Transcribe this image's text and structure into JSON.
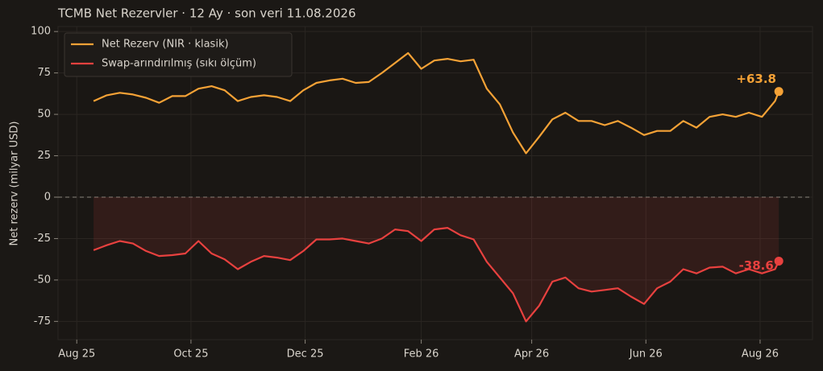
{
  "chart_data": {
    "type": "line",
    "title": "TCMB Net Rezervler · 12 Ay · son veri 11.08.2026",
    "y_label": "Net rezerv (milyar USD)",
    "x": [
      "2025-08-10",
      "2025-08-17",
      "2025-08-24",
      "2025-08-31",
      "2025-09-07",
      "2025-09-14",
      "2025-09-21",
      "2025-09-28",
      "2025-10-05",
      "2025-10-12",
      "2025-10-19",
      "2025-10-26",
      "2025-11-02",
      "2025-11-09",
      "2025-11-16",
      "2025-11-23",
      "2025-11-30",
      "2025-12-07",
      "2025-12-14",
      "2025-12-21",
      "2025-12-28",
      "2026-01-04",
      "2026-01-11",
      "2026-01-18",
      "2026-01-25",
      "2026-02-01",
      "2026-02-08",
      "2026-02-15",
      "2026-02-22",
      "2026-03-01",
      "2026-03-08",
      "2026-03-15",
      "2026-03-22",
      "2026-03-29",
      "2026-04-05",
      "2026-04-12",
      "2026-04-19",
      "2026-04-26",
      "2026-05-03",
      "2026-05-10",
      "2026-05-17",
      "2026-05-24",
      "2026-05-31",
      "2026-06-07",
      "2026-06-14",
      "2026-06-21",
      "2026-06-28",
      "2026-07-05",
      "2026-07-12",
      "2026-07-19",
      "2026-07-26",
      "2026-08-02",
      "2026-08-09",
      "2026-08-11"
    ],
    "series": [
      {
        "name": "Net Rezerv (NIR · klasik)",
        "color": "#f5a236",
        "values": [
          58,
          61.5,
          63,
          62,
          60,
          57,
          61,
          61,
          65.5,
          67,
          64.5,
          58,
          60.5,
          61.5,
          60.5,
          58,
          64.5,
          69,
          70.5,
          71.5,
          69,
          69.5,
          75,
          81,
          87,
          77.5,
          82.5,
          83.5,
          82,
          83,
          65.5,
          56,
          39,
          26.5,
          36.5,
          47,
          51,
          46,
          46,
          43.5,
          46,
          42,
          37.5,
          40,
          40,
          46,
          42,
          48.5,
          50,
          48.5,
          51,
          48.5,
          58,
          63.8
        ],
        "value_labels": [
          null,
          null,
          null,
          null,
          null,
          null,
          null,
          null,
          null,
          null,
          null,
          null,
          null,
          null,
          null,
          null,
          null,
          null,
          null,
          null,
          null,
          null,
          null,
          null,
          null,
          null,
          null,
          null,
          null,
          null,
          null,
          null,
          null,
          null,
          null,
          null,
          null,
          null,
          null,
          null,
          null,
          null,
          null,
          null,
          null,
          null,
          null,
          null,
          null,
          null,
          null,
          null,
          null,
          "+63.8"
        ]
      },
      {
        "name": "Swap-arındırılmış (sıkı ölçüm)",
        "color": "#e8413f",
        "fill": true,
        "values": [
          -32,
          -29,
          -26.5,
          -28,
          -32.5,
          -35.5,
          -35,
          -34,
          -26.5,
          -34,
          -37.5,
          -43.5,
          -39,
          -35.5,
          -36.5,
          -38,
          -32.5,
          -25.5,
          -25.5,
          -25,
          -26.5,
          -28,
          -25,
          -19.5,
          -20.5,
          -26.5,
          -19.5,
          -18.5,
          -23,
          -25.5,
          -39,
          -48.5,
          -58,
          -75,
          -65.5,
          -51,
          -48.5,
          -55,
          -57,
          -56,
          -55,
          -60,
          -64.5,
          -55,
          -51,
          -43.5,
          -46,
          -42.5,
          -42,
          -46,
          -43.5,
          -46,
          -43.5,
          -38.6
        ],
        "value_labels": [
          null,
          null,
          null,
          null,
          null,
          null,
          null,
          null,
          null,
          null,
          null,
          null,
          null,
          null,
          null,
          null,
          null,
          null,
          null,
          null,
          null,
          null,
          null,
          null,
          null,
          null,
          null,
          null,
          null,
          null,
          null,
          null,
          null,
          null,
          null,
          null,
          null,
          null,
          null,
          null,
          null,
          null,
          null,
          null,
          null,
          null,
          null,
          null,
          null,
          null,
          null,
          null,
          null,
          "-38.6"
        ]
      }
    ],
    "xlim": [
      "2025-07-22",
      "2026-08-29"
    ],
    "xticks": [
      {
        "value": "2025-08-01",
        "label": "Aug 25"
      },
      {
        "value": "2025-10-01",
        "label": "Oct 25"
      },
      {
        "value": "2025-12-01",
        "label": "Dec 25"
      },
      {
        "value": "2026-02-01",
        "label": "Feb 26"
      },
      {
        "value": "2026-04-01",
        "label": "Apr 26"
      },
      {
        "value": "2026-06-01",
        "label": "Jun 26"
      },
      {
        "value": "2026-08-01",
        "label": "Aug 26"
      }
    ],
    "ylim": [
      -86,
      103
    ],
    "yticks": [
      -75,
      -50,
      -25,
      0,
      25,
      50,
      75,
      100
    ],
    "grid": true,
    "zero_line": true,
    "legend": "upper-left"
  }
}
